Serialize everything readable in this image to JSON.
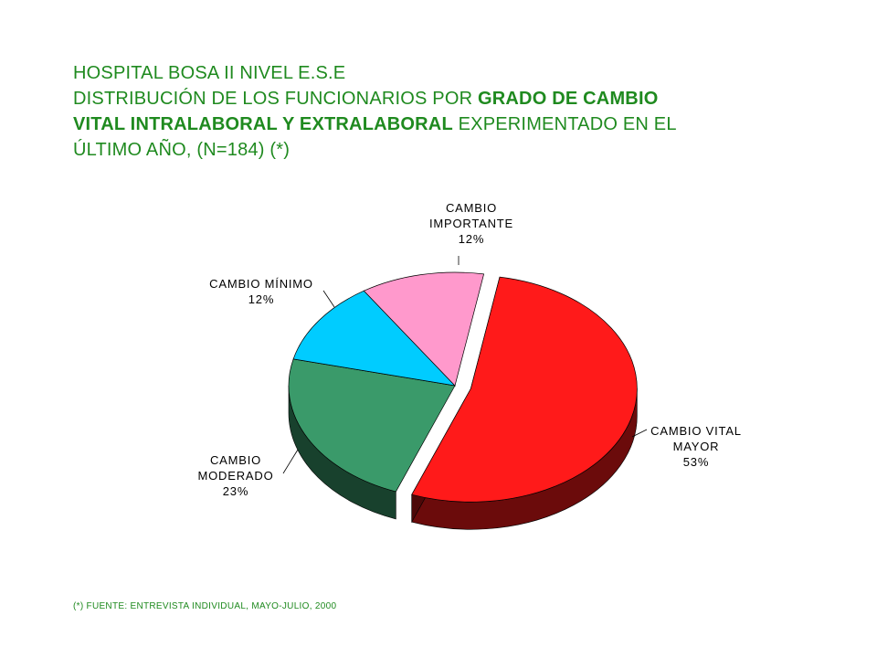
{
  "title": {
    "line1": "HOSPITAL BOSA II NIVEL E.S.E",
    "line2_normal": "DISTRIBUCIÓN DE LOS FUNCIONARIOS POR ",
    "line2_bold": "GRADO DE CAMBIO",
    "line3_bold": "VITAL INTRALABORAL Y EXTRALABORAL",
    "line3_normal": "  EXPERIMENTADO EN EL",
    "line4": "ÚLTIMO  AÑO,  (N=184) (*)"
  },
  "footnote": "(*) FUENTE: ENTREVISTA  INDIVIDUAL,  MAYO-JULIO, 2000",
  "colors": {
    "title": "#1f8a1f"
  },
  "chart_data": {
    "type": "pie",
    "style": "3d-exploded",
    "total_n": 184,
    "slices": [
      {
        "label_lines": [
          "CAMBIO VITAL",
          "MAYOR"
        ],
        "percent_label": "53%",
        "value": 53,
        "color": "#ff1a1a",
        "exploded": true
      },
      {
        "label_lines": [
          "CAMBIO",
          "MODERADO"
        ],
        "percent_label": "23%",
        "value": 23,
        "color": "#3a9a6a",
        "exploded": false
      },
      {
        "label_lines": [
          "CAMBIO MÍNIMO"
        ],
        "percent_label": "12%",
        "value": 12,
        "color": "#00ccff",
        "exploded": false
      },
      {
        "label_lines": [
          "CAMBIO",
          "IMPORTANTE"
        ],
        "percent_label": "12%",
        "value": 12,
        "color": "#ff99cc",
        "exploded": false
      }
    ]
  }
}
